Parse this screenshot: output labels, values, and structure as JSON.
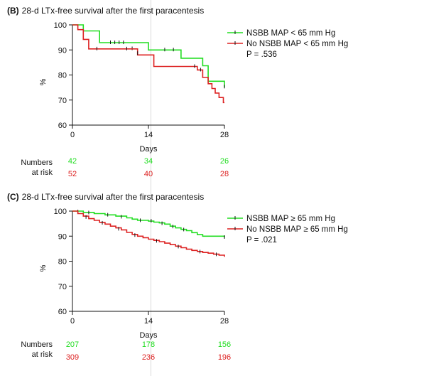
{
  "chart_data": [
    {
      "type": "line",
      "panel_letter": "(B)",
      "title": "28-d LTx-free survival after the first paracentesis",
      "xlabel": "Days",
      "ylabel": "%",
      "xlim": [
        0,
        28
      ],
      "ylim": [
        60,
        100
      ],
      "xticks": [
        0,
        14,
        28
      ],
      "yticks": [
        60,
        70,
        80,
        90,
        100
      ],
      "legend_position": "top-right",
      "p_value": "P = .536",
      "series": [
        {
          "name": "NSBB MAP < 65 mm Hg",
          "color": "#22dd22",
          "steps": [
            [
              0,
              100
            ],
            [
              2,
              100
            ],
            [
              2,
              97.6
            ],
            [
              5,
              97.6
            ],
            [
              5,
              92.9
            ],
            [
              14,
              92.9
            ],
            [
              14,
              90.0
            ],
            [
              20,
              90.0
            ],
            [
              20,
              86.7
            ],
            [
              24,
              86.7
            ],
            [
              24,
              83.7
            ],
            [
              25,
              83.7
            ],
            [
              25,
              77.5
            ],
            [
              28,
              77.5
            ],
            [
              28,
              75.0
            ]
          ],
          "censor": [
            [
              7.0,
              92.9
            ],
            [
              7.8,
              92.9
            ],
            [
              8.6,
              92.9
            ],
            [
              9.4,
              92.9
            ],
            [
              11,
              90.5
            ],
            [
              17,
              90.0
            ],
            [
              18.6,
              90.0
            ],
            [
              28,
              75.2
            ]
          ]
        },
        {
          "name": "No NSBB MAP < 65 mm Hg",
          "color": "#dd2222",
          "steps": [
            [
              0,
              100
            ],
            [
              1,
              100
            ],
            [
              1,
              98.1
            ],
            [
              2,
              98.1
            ],
            [
              2,
              94.2
            ],
            [
              3,
              94.2
            ],
            [
              3,
              90.4
            ],
            [
              12,
              90.4
            ],
            [
              12,
              88.0
            ],
            [
              15,
              88.0
            ],
            [
              15,
              83.4
            ],
            [
              23,
              83.4
            ],
            [
              23,
              82.0
            ],
            [
              24,
              82.0
            ],
            [
              24,
              79.0
            ],
            [
              25,
              79.0
            ],
            [
              25,
              76.5
            ],
            [
              25.7,
              76.5
            ],
            [
              25.7,
              74.6
            ],
            [
              26.3,
              74.6
            ],
            [
              26.3,
              72.8
            ],
            [
              27,
              72.8
            ],
            [
              27,
              71.0
            ],
            [
              27.8,
              71.0
            ],
            [
              27.8,
              69.0
            ],
            [
              28,
              69.0
            ]
          ],
          "censor": [
            [
              4.5,
              90.4
            ],
            [
              10,
              90.4
            ],
            [
              12,
              88.6
            ],
            [
              22.5,
              83.4
            ],
            [
              23.6,
              82.0
            ]
          ]
        }
      ],
      "risk_table": {
        "label_line1": "Numbers",
        "label_line2": "at risk",
        "rows": [
          {
            "color": "#22dd22",
            "days": [
              0,
              14,
              28
            ],
            "values": [
              "42",
              "34",
              "26"
            ]
          },
          {
            "color": "#dd2222",
            "days": [
              0,
              14,
              28
            ],
            "values": [
              "52",
              "40",
              "28"
            ]
          }
        ]
      }
    },
    {
      "type": "line",
      "panel_letter": "(C)",
      "title": "28-d LTx-free survival after the first paracentesis",
      "xlabel": "Days",
      "ylabel": "%",
      "xlim": [
        0,
        28
      ],
      "ylim": [
        60,
        100
      ],
      "xticks": [
        0,
        14,
        28
      ],
      "yticks": [
        60,
        70,
        80,
        90,
        100
      ],
      "legend_position": "top-right",
      "p_value": "P = .021",
      "series": [
        {
          "name": "NSBB MAP ≥ 65 mm Hg",
          "color": "#22dd22",
          "points": [
            [
              0,
              100
            ],
            [
              2,
              99.5
            ],
            [
              4,
              99
            ],
            [
              6,
              98.5
            ],
            [
              8,
              98
            ],
            [
              10,
              97.3
            ],
            [
              11,
              96.8
            ],
            [
              12,
              96.3
            ],
            [
              14,
              96
            ],
            [
              15,
              95.6
            ],
            [
              16,
              95.3
            ],
            [
              17,
              94.8
            ],
            [
              18,
              94
            ],
            [
              19,
              93.3
            ],
            [
              20,
              92.7
            ],
            [
              21,
              92.2
            ],
            [
              22,
              91.4
            ],
            [
              23,
              90.6
            ],
            [
              24,
              90
            ],
            [
              26,
              90
            ],
            [
              28,
              89.5
            ]
          ],
          "censor": [
            [
              1,
              99.7
            ],
            [
              3,
              99.3
            ],
            [
              6.5,
              98.4
            ],
            [
              9,
              97.6
            ],
            [
              12.5,
              96.2
            ],
            [
              14.5,
              96
            ],
            [
              16.5,
              95
            ],
            [
              18.5,
              93.7
            ],
            [
              20.5,
              92.5
            ],
            [
              28,
              89.5
            ]
          ]
        },
        {
          "name": "No NSBB MAP ≥ 65 mm Hg",
          "color": "#dd2222",
          "points": [
            [
              0,
              100
            ],
            [
              1,
              99
            ],
            [
              2,
              98
            ],
            [
              3,
              97
            ],
            [
              4,
              96.3
            ],
            [
              5,
              95.5
            ],
            [
              6,
              94.8
            ],
            [
              7,
              94
            ],
            [
              8,
              93.3
            ],
            [
              9,
              92.5
            ],
            [
              10,
              91.5
            ],
            [
              11,
              90.7
            ],
            [
              12,
              90
            ],
            [
              13,
              89.4
            ],
            [
              14,
              88.8
            ],
            [
              15,
              88.3
            ],
            [
              16,
              87.8
            ],
            [
              17,
              87.2
            ],
            [
              18,
              86.6
            ],
            [
              19,
              86
            ],
            [
              20,
              85.4
            ],
            [
              21,
              84.8
            ],
            [
              22,
              84.3
            ],
            [
              23,
              83.9
            ],
            [
              24,
              83.5
            ],
            [
              25,
              83.2
            ],
            [
              26,
              82.8
            ],
            [
              27,
              82.4
            ],
            [
              28,
              81.8
            ]
          ],
          "censor": [
            [
              2.5,
              97.5
            ],
            [
              5.5,
              95.2
            ],
            [
              8.5,
              92.8
            ],
            [
              11.5,
              90.3
            ],
            [
              15.5,
              88
            ],
            [
              19.5,
              85.7
            ],
            [
              23.5,
              83.7
            ],
            [
              26.5,
              82.6
            ]
          ]
        }
      ],
      "risk_table": {
        "label_line1": "Numbers",
        "label_line2": "at risk",
        "rows": [
          {
            "color": "#22dd22",
            "days": [
              0,
              14,
              28
            ],
            "values": [
              "207",
              "178",
              "156"
            ]
          },
          {
            "color": "#dd2222",
            "days": [
              0,
              14,
              28
            ],
            "values": [
              "309",
              "236",
              "196"
            ]
          }
        ]
      }
    }
  ]
}
